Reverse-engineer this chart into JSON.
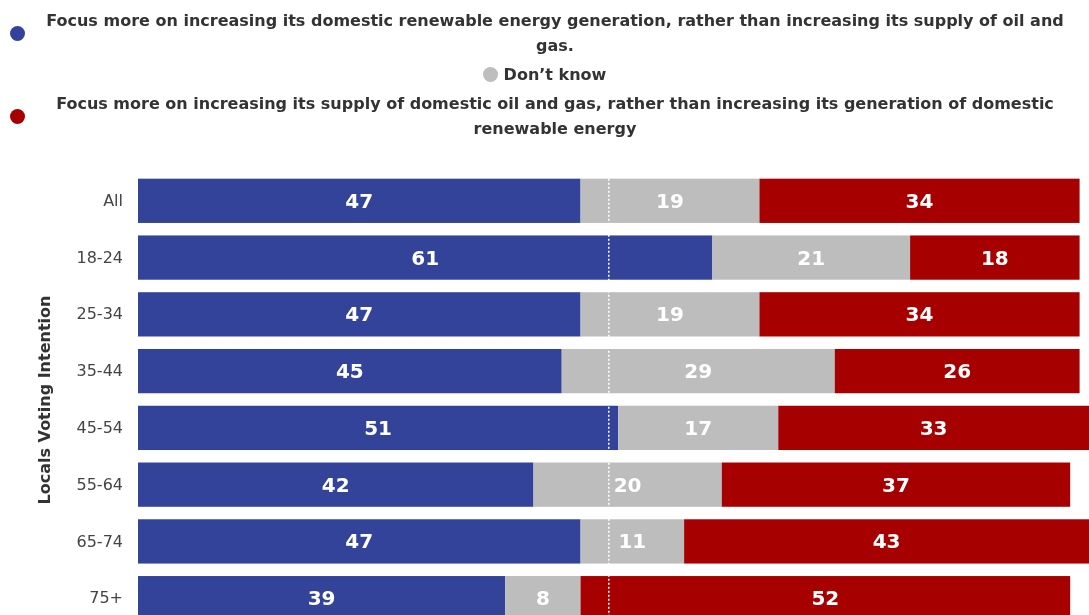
{
  "chart_data": {
    "type": "bar",
    "orientation": "horizontal",
    "stacked": true,
    "ylabel": "Locals Voting Intention",
    "categories": [
      "All",
      "18-24",
      "25-34",
      "35-44",
      "45-54",
      "55-64",
      "65-74",
      "75+"
    ],
    "series": [
      {
        "name": "Focus more on increasing its domestic renewable energy generation, rather than increasing its supply of oil and gas.",
        "color": "#324399",
        "values": [
          47,
          61,
          47,
          45,
          51,
          42,
          47,
          39
        ]
      },
      {
        "name": "Don’t know",
        "color": "#bdbdbd",
        "values": [
          19,
          21,
          19,
          29,
          17,
          20,
          11,
          8
        ]
      },
      {
        "name": "Focus more on increasing its supply of domestic oil and gas, rather than increasing its generation of domestic renewable energy",
        "color": "#a70000",
        "values": [
          34,
          18,
          34,
          26,
          33,
          37,
          43,
          52
        ]
      }
    ],
    "xlim": [
      0,
      101
    ],
    "tick_labels": "y",
    "data_labels": true,
    "legend": "top",
    "ref_lines": [
      {
        "axis": "x",
        "value": 50,
        "color": "#ffffff",
        "line_style": "dotted"
      }
    ]
  }
}
